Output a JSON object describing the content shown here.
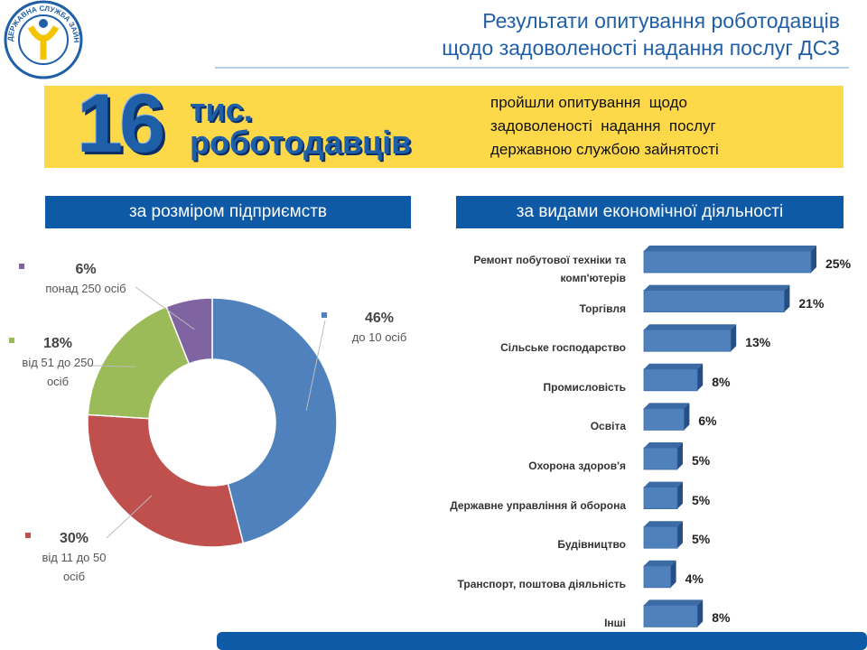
{
  "header": {
    "logo_text": "ДЕРЖАВНА СЛУЖБА ЗАЙНЯТОСТІ",
    "title": [
      "Результати опитування роботодавців",
      "щодо задоволеності надання послуг ДСЗ"
    ]
  },
  "banner": {
    "number": 16,
    "unit": "тис.",
    "subject": "роботодавців",
    "description": [
      "пройшли опитування  щодо",
      "задоволеності  надання  послуг",
      "державною службою зайнятості"
    ]
  },
  "chart_data": [
    {
      "type": "donut",
      "title": "за розміром підприємств",
      "categories": [
        "до 10 осіб",
        "від 11 до 50 осіб",
        "від 51 до 250 осіб",
        "понад 250 осіб"
      ],
      "values": [
        46,
        30,
        18,
        6
      ],
      "value_labels": [
        "46%",
        "30%",
        "18%",
        "6%"
      ],
      "colors": [
        "#4f81bd",
        "#c0504d",
        "#9bbb59",
        "#8064a2"
      ]
    },
    {
      "type": "bar",
      "orientation": "horizontal",
      "title": "за видами економічної діяльності",
      "categories": [
        "Ремонт побутової техніки та комп'ютерів",
        "Торгівля",
        "Сільське господарство",
        "Промисловість",
        "Освіта",
        "Охорона здоров'я",
        "Державне управління й оборона",
        "Будівництво",
        "Транспорт, поштова діяльність",
        "Інші"
      ],
      "values": [
        25,
        21,
        13,
        8,
        6,
        5,
        5,
        5,
        4,
        8
      ],
      "value_labels": [
        "25%",
        "21%",
        "13%",
        "8%",
        "6%",
        "5%",
        "5%",
        "5%",
        "4%",
        "8%"
      ],
      "color": "#4f81bd"
    }
  ]
}
